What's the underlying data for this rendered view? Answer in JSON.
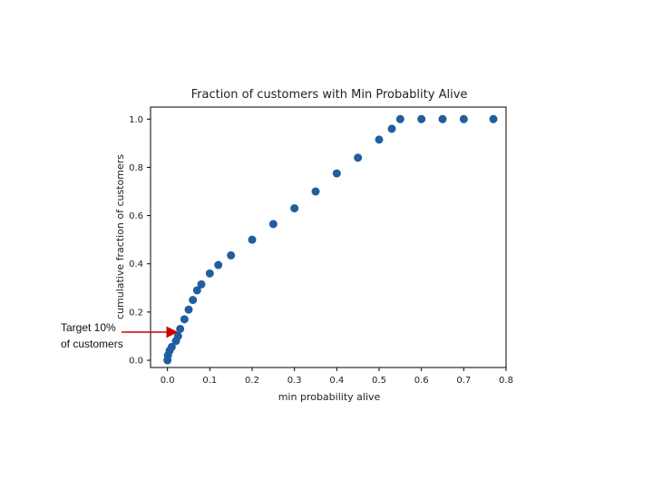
{
  "chart_data": {
    "type": "scatter",
    "title": "Fraction of customers with Min Probablity Alive",
    "xlabel": "min probability alive",
    "ylabel": "cumulative fraction of customers",
    "xlim": [
      -0.04,
      0.8
    ],
    "ylim": [
      -0.03,
      1.05
    ],
    "xticks": [
      "0.0",
      "0.1",
      "0.2",
      "0.3",
      "0.4",
      "0.5",
      "0.6",
      "0.7",
      "0.8"
    ],
    "yticks": [
      "0.0",
      "0.2",
      "0.4",
      "0.6",
      "0.8",
      "1.0"
    ],
    "grid": false,
    "marker_color": "#1f5fa0",
    "series": [
      {
        "points": [
          [
            0.0,
            0.0
          ],
          [
            0.001,
            0.02
          ],
          [
            0.005,
            0.04
          ],
          [
            0.01,
            0.055
          ],
          [
            0.02,
            0.08
          ],
          [
            0.025,
            0.1
          ],
          [
            0.03,
            0.13
          ],
          [
            0.04,
            0.17
          ],
          [
            0.05,
            0.21
          ],
          [
            0.06,
            0.25
          ],
          [
            0.07,
            0.29
          ],
          [
            0.08,
            0.315
          ],
          [
            0.1,
            0.36
          ],
          [
            0.12,
            0.395
          ],
          [
            0.15,
            0.435
          ],
          [
            0.2,
            0.5
          ],
          [
            0.25,
            0.565
          ],
          [
            0.3,
            0.63
          ],
          [
            0.35,
            0.7
          ],
          [
            0.4,
            0.775
          ],
          [
            0.45,
            0.84
          ],
          [
            0.5,
            0.915
          ],
          [
            0.53,
            0.96
          ],
          [
            0.55,
            1.0
          ],
          [
            0.6,
            1.0
          ],
          [
            0.65,
            1.0
          ],
          [
            0.7,
            1.0
          ],
          [
            0.77,
            1.0
          ]
        ]
      }
    ]
  },
  "annotation": {
    "line1": "Target 10%",
    "line2": "of customers",
    "arrow_color": "#cc0000"
  }
}
